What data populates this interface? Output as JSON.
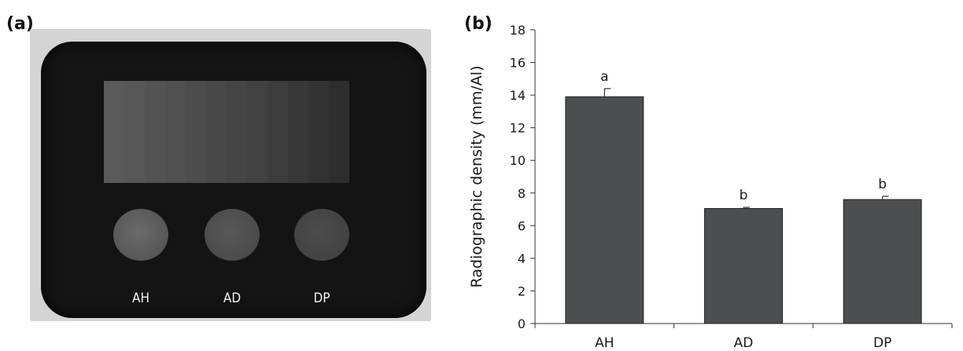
{
  "panels": {
    "a": {
      "label": "(a)",
      "samples": [
        "AH",
        "AD",
        "DP"
      ]
    },
    "b": {
      "label": "(b)"
    }
  },
  "colors": {
    "bar_fill": "#4d4e50",
    "bar_stroke": "#222222",
    "axis": "#333333",
    "film_background": "#141414"
  },
  "step_wedge_shades": [
    "#5a5a5a",
    "#575757",
    "#535353",
    "#505050",
    "#4c4c4c",
    "#484848",
    "#454545",
    "#414141",
    "#3c3c3c",
    "#383838",
    "#333333",
    "#2e2e2e"
  ],
  "chart_data": {
    "type": "bar",
    "categories": [
      "AH",
      "AD",
      "DP"
    ],
    "values": [
      13.9,
      7.05,
      7.6
    ],
    "errors": [
      0.5,
      0.07,
      0.2
    ],
    "significance_labels": [
      "a",
      "b",
      "b"
    ],
    "title": "",
    "xlabel": "",
    "ylabel": "Radiographic density (mm/Al)",
    "ylim": [
      0,
      18
    ],
    "yticks": [
      0,
      2,
      4,
      6,
      8,
      10,
      12,
      14,
      16,
      18
    ],
    "grid": false,
    "legend": "none"
  }
}
